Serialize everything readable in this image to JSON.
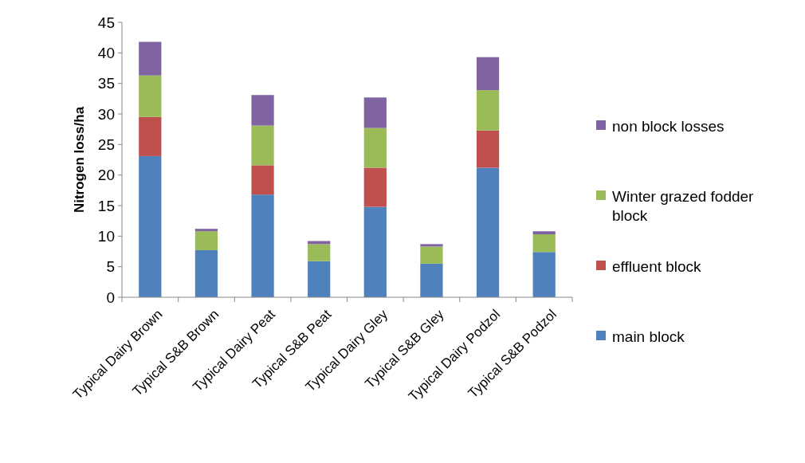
{
  "chart_data": {
    "type": "bar",
    "stacked": true,
    "ylabel": "Nitrogen loss/ha",
    "categories": [
      "Typical Dairy Brown",
      "Typical S&B Brown",
      "Typical Dairy Peat",
      "Typical S&B Peat",
      "Typical Dairy Gley",
      "Typical S&B Gley",
      "Typical Dairy Podzol",
      "Typical S&B Podzol"
    ],
    "series": [
      {
        "name": "main block",
        "color": "#4f81bd",
        "values": [
          23.1,
          7.7,
          16.8,
          5.9,
          14.8,
          5.5,
          21.2,
          7.4
        ]
      },
      {
        "name": "effluent block",
        "color": "#c0504d",
        "values": [
          6.4,
          0,
          4.8,
          0,
          6.4,
          0,
          6.1,
          0
        ]
      },
      {
        "name": "Winter grazed fodder block",
        "color": "#9bbb59",
        "values": [
          6.8,
          3.1,
          6.5,
          2.8,
          6.5,
          2.8,
          6.6,
          2.9
        ]
      },
      {
        "name": "non block losses",
        "color": "#8064a2",
        "values": [
          5.5,
          0.4,
          5.0,
          0.5,
          5.0,
          0.4,
          5.4,
          0.5
        ]
      }
    ],
    "ylim": [
      0,
      45
    ],
    "yticks": [
      0,
      5,
      10,
      15,
      20,
      25,
      30,
      35,
      40,
      45
    ],
    "grid": false,
    "legend": "right"
  }
}
